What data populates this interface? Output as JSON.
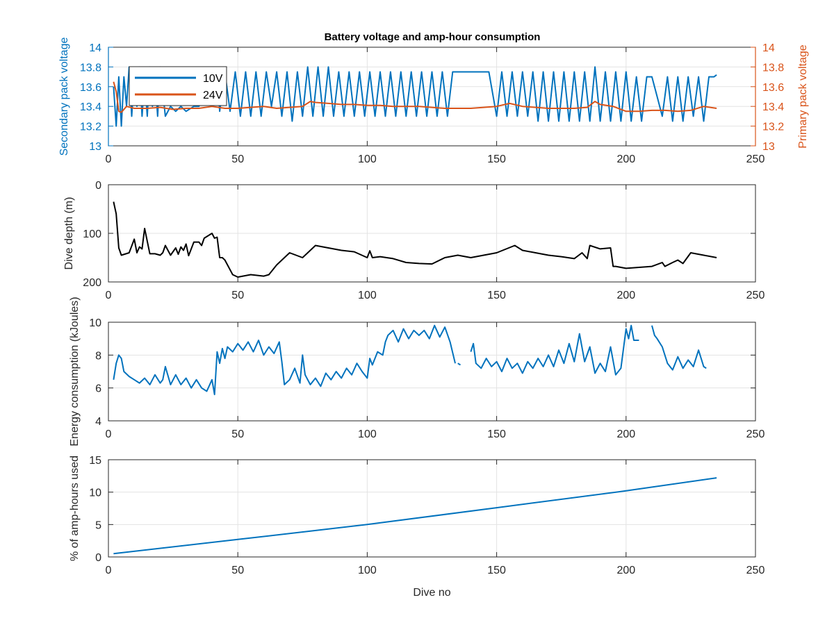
{
  "figure": {
    "title": "Battery voltage and amp-hour consumption",
    "background": "#ffffff"
  },
  "colors": {
    "blue": "#0072BD",
    "orange": "#D95319",
    "black": "#000000",
    "grid": "#e3e3e3",
    "axis": "#262626"
  },
  "chart_data": [
    {
      "id": "voltage",
      "type": "line",
      "title": "Battery voltage and amp-hour consumption",
      "xlabel": "",
      "xlim": [
        0,
        250
      ],
      "xticks": [
        0,
        50,
        100,
        150,
        200,
        250
      ],
      "ylabel_left": "Secondary pack voltage",
      "ylabel_right": "Primary pack voltage",
      "ylim": [
        13,
        14
      ],
      "yticks": [
        13,
        13.2,
        13.4,
        13.6,
        13.8,
        14
      ],
      "ytick_labels": [
        "13",
        "13.2",
        "13.4",
        "13.6",
        "13.8",
        "14"
      ],
      "grid": true,
      "legend": {
        "position": "top-left",
        "entries": [
          "10V",
          "24V"
        ]
      },
      "series": [
        {
          "name": "10V",
          "axis": "left",
          "color": "#0072BD",
          "x": [
            2,
            3,
            4,
            5,
            6,
            7,
            8,
            9,
            10,
            11,
            12,
            13,
            14,
            15,
            16,
            17,
            18,
            19,
            20,
            22,
            24,
            26,
            28,
            30,
            33,
            35,
            38,
            40,
            42,
            43,
            45,
            47,
            49,
            51,
            53,
            55,
            57,
            59,
            61,
            63,
            65,
            67,
            69,
            71,
            73,
            75,
            77,
            79,
            81,
            83,
            85,
            87,
            89,
            91,
            93,
            95,
            97,
            99,
            101,
            103,
            105,
            107,
            109,
            111,
            113,
            115,
            117,
            119,
            121,
            123,
            125,
            127,
            129,
            131,
            133,
            135,
            138,
            141,
            144,
            147,
            150,
            152,
            154,
            156,
            158,
            160,
            162,
            164,
            166,
            168,
            170,
            172,
            174,
            176,
            178,
            180,
            182,
            184,
            186,
            188,
            190,
            192,
            194,
            196,
            198,
            200,
            202,
            204,
            206,
            208,
            210,
            212,
            214,
            216,
            218,
            220,
            222,
            224,
            226,
            228,
            230,
            232,
            234,
            235
          ],
          "y": [
            13.6,
            13.2,
            13.7,
            13.2,
            13.7,
            13.4,
            13.8,
            13.3,
            13.7,
            13.4,
            13.8,
            13.3,
            13.7,
            13.3,
            13.8,
            13.4,
            13.7,
            13.3,
            13.8,
            13.3,
            13.4,
            13.35,
            13.4,
            13.35,
            13.4,
            13.4,
            13.75,
            13.4,
            13.75,
            13.35,
            13.75,
            13.35,
            13.75,
            13.3,
            13.75,
            13.3,
            13.75,
            13.3,
            13.75,
            13.4,
            13.75,
            13.3,
            13.75,
            13.25,
            13.75,
            13.3,
            13.8,
            13.3,
            13.8,
            13.3,
            13.8,
            13.3,
            13.75,
            13.3,
            13.75,
            13.3,
            13.75,
            13.3,
            13.75,
            13.3,
            13.75,
            13.3,
            13.75,
            13.3,
            13.75,
            13.3,
            13.75,
            13.3,
            13.75,
            13.3,
            13.75,
            13.3,
            13.75,
            13.3,
            13.75,
            13.75,
            13.75,
            13.75,
            13.75,
            13.75,
            13.3,
            13.75,
            13.3,
            13.75,
            13.3,
            13.75,
            13.3,
            13.75,
            13.25,
            13.75,
            13.25,
            13.75,
            13.25,
            13.75,
            13.25,
            13.75,
            13.25,
            13.75,
            13.25,
            13.8,
            13.25,
            13.75,
            13.25,
            13.75,
            13.25,
            13.75,
            13.25,
            13.7,
            13.25,
            13.7,
            13.7,
            13.5,
            13.3,
            13.7,
            13.25,
            13.7,
            13.25,
            13.7,
            13.3,
            13.7,
            13.25,
            13.7,
            13.7,
            13.72
          ]
        },
        {
          "name": "24V",
          "axis": "right",
          "color": "#D95319",
          "x": [
            2,
            3,
            4,
            5,
            7,
            10,
            15,
            20,
            25,
            30,
            35,
            40,
            45,
            50,
            55,
            60,
            65,
            70,
            75,
            78,
            80,
            85,
            90,
            95,
            100,
            105,
            110,
            120,
            130,
            140,
            150,
            155,
            160,
            165,
            170,
            180,
            185,
            188,
            190,
            195,
            200,
            205,
            210,
            215,
            220,
            225,
            230,
            235
          ],
          "y": [
            13.65,
            13.55,
            13.35,
            13.34,
            13.4,
            13.38,
            13.38,
            13.39,
            13.37,
            13.38,
            13.38,
            13.4,
            13.38,
            13.38,
            13.39,
            13.4,
            13.38,
            13.39,
            13.4,
            13.45,
            13.44,
            13.43,
            13.42,
            13.42,
            13.41,
            13.41,
            13.4,
            13.4,
            13.38,
            13.38,
            13.4,
            13.43,
            13.4,
            13.39,
            13.38,
            13.38,
            13.39,
            13.45,
            13.42,
            13.4,
            13.35,
            13.35,
            13.36,
            13.36,
            13.35,
            13.36,
            13.4,
            13.38
          ]
        }
      ]
    },
    {
      "id": "depth",
      "type": "line",
      "xlabel": "",
      "ylabel": "Dive depth (m)",
      "xlim": [
        0,
        250
      ],
      "xticks": [
        0,
        50,
        100,
        150,
        200,
        250
      ],
      "ylim": [
        0,
        200
      ],
      "yticks": [
        0,
        100,
        200
      ],
      "reversed_y": true,
      "grid": true,
      "series": [
        {
          "color": "#000000",
          "x": [
            2,
            3,
            4,
            5,
            8,
            10,
            11,
            12,
            13,
            14,
            16,
            18,
            20,
            21,
            22,
            24,
            26,
            27,
            28,
            29,
            30,
            31,
            33,
            35,
            36,
            37,
            40,
            41,
            42,
            43,
            44,
            45,
            48,
            50,
            55,
            60,
            62,
            65,
            70,
            75,
            80,
            85,
            90,
            95,
            100,
            101,
            102,
            105,
            110,
            115,
            120,
            125,
            130,
            135,
            140,
            145,
            150,
            157,
            160,
            165,
            170,
            175,
            180,
            183,
            185,
            186,
            190,
            194,
            195,
            196,
            200,
            205,
            210,
            214,
            215,
            218,
            220,
            222,
            225,
            230,
            235
          ],
          "y": [
            35,
            60,
            130,
            145,
            140,
            112,
            140,
            128,
            132,
            90,
            142,
            142,
            145,
            140,
            125,
            145,
            130,
            143,
            128,
            135,
            122,
            146,
            118,
            118,
            125,
            110,
            100,
            110,
            108,
            150,
            150,
            155,
            185,
            190,
            185,
            188,
            185,
            165,
            140,
            150,
            125,
            130,
            135,
            138,
            150,
            136,
            150,
            148,
            152,
            160,
            162,
            163,
            150,
            145,
            150,
            145,
            140,
            125,
            135,
            140,
            145,
            148,
            152,
            140,
            152,
            125,
            132,
            130,
            168,
            168,
            172,
            170,
            168,
            160,
            168,
            160,
            155,
            162,
            140,
            145,
            150
          ]
        }
      ]
    },
    {
      "id": "energy",
      "type": "line",
      "xlabel": "",
      "ylabel": "Energy consumption (kJoules)",
      "xlim": [
        0,
        250
      ],
      "xticks": [
        0,
        50,
        100,
        150,
        200,
        250
      ],
      "ylim": [
        4,
        10
      ],
      "yticks": [
        4,
        6,
        8,
        10
      ],
      "grid": true,
      "series": [
        {
          "color": "#0072BD",
          "x": [
            2,
            3,
            4,
            5,
            6,
            8,
            10,
            12,
            14,
            16,
            18,
            20,
            21,
            22,
            24,
            26,
            28,
            30,
            32,
            34,
            36,
            38,
            40,
            41,
            42,
            43,
            44,
            45,
            46,
            48,
            50,
            52,
            54,
            56,
            58,
            60,
            62,
            64,
            66,
            67,
            68,
            70,
            72,
            74,
            75,
            76,
            78,
            80,
            82,
            84,
            86,
            88,
            90,
            92,
            94,
            96,
            98,
            100,
            101,
            102,
            104,
            106,
            107,
            108,
            110,
            112,
            114,
            116,
            118,
            120,
            122,
            124,
            126,
            128,
            130,
            132,
            134,
            null,
            135,
            136,
            null,
            140,
            141,
            142,
            144,
            146,
            148,
            150,
            152,
            154,
            156,
            158,
            160,
            162,
            164,
            166,
            168,
            170,
            172,
            174,
            176,
            178,
            180,
            182,
            184,
            186,
            188,
            190,
            192,
            194,
            196,
            198,
            200,
            201,
            202,
            203,
            205,
            null,
            210,
            211,
            212,
            214,
            216,
            218,
            220,
            222,
            224,
            226,
            228,
            230,
            231
          ],
          "y": [
            6.5,
            7.5,
            8,
            7.8,
            7,
            6.7,
            6.5,
            6.3,
            6.6,
            6.2,
            6.8,
            6.3,
            6.5,
            7.3,
            6.2,
            6.8,
            6.2,
            6.6,
            6.0,
            6.5,
            6.0,
            5.8,
            6.5,
            5.6,
            8.2,
            7.5,
            8.4,
            7.8,
            8.5,
            8.2,
            8.7,
            8.3,
            8.8,
            8.2,
            8.9,
            8.0,
            8.5,
            8.1,
            8.8,
            7.6,
            6.2,
            6.5,
            7.2,
            6.3,
            8.0,
            6.8,
            6.2,
            6.6,
            6.1,
            6.9,
            6.5,
            7.0,
            6.6,
            7.2,
            6.8,
            7.5,
            7.0,
            6.6,
            7.8,
            7.4,
            8.2,
            8.0,
            8.8,
            9.2,
            9.5,
            8.8,
            9.6,
            9.0,
            9.5,
            9.2,
            9.5,
            9.0,
            9.8,
            9.1,
            9.7,
            8.8,
            7.5,
            null,
            7.5,
            7.4,
            null,
            8.2,
            8.7,
            7.5,
            7.2,
            7.8,
            7.3,
            7.6,
            7.0,
            7.8,
            7.2,
            7.5,
            6.9,
            7.6,
            7.2,
            7.8,
            7.3,
            8.0,
            7.3,
            8.3,
            7.5,
            8.7,
            7.6,
            9.3,
            7.6,
            8.5,
            6.9,
            7.5,
            7.0,
            8.5,
            6.8,
            7.2,
            9.6,
            9.0,
            9.8,
            8.9,
            8.9,
            null,
            9.8,
            9.2,
            9.0,
            8.5,
            7.5,
            7.1,
            7.9,
            7.2,
            7.7,
            7.3,
            8.3,
            7.3,
            7.2
          ]
        }
      ]
    },
    {
      "id": "amphours",
      "type": "line",
      "xlabel": "Dive no",
      "ylabel": "% of amp-hours used",
      "xlim": [
        0,
        250
      ],
      "xticks": [
        0,
        50,
        100,
        150,
        200,
        250
      ],
      "ylim": [
        0,
        15
      ],
      "yticks": [
        0,
        5,
        10,
        15
      ],
      "grid": true,
      "series": [
        {
          "color": "#0072BD",
          "x": [
            2,
            50,
            100,
            150,
            200,
            235
          ],
          "y": [
            0.5,
            2.7,
            5.0,
            7.6,
            10.2,
            12.2
          ]
        }
      ]
    }
  ]
}
